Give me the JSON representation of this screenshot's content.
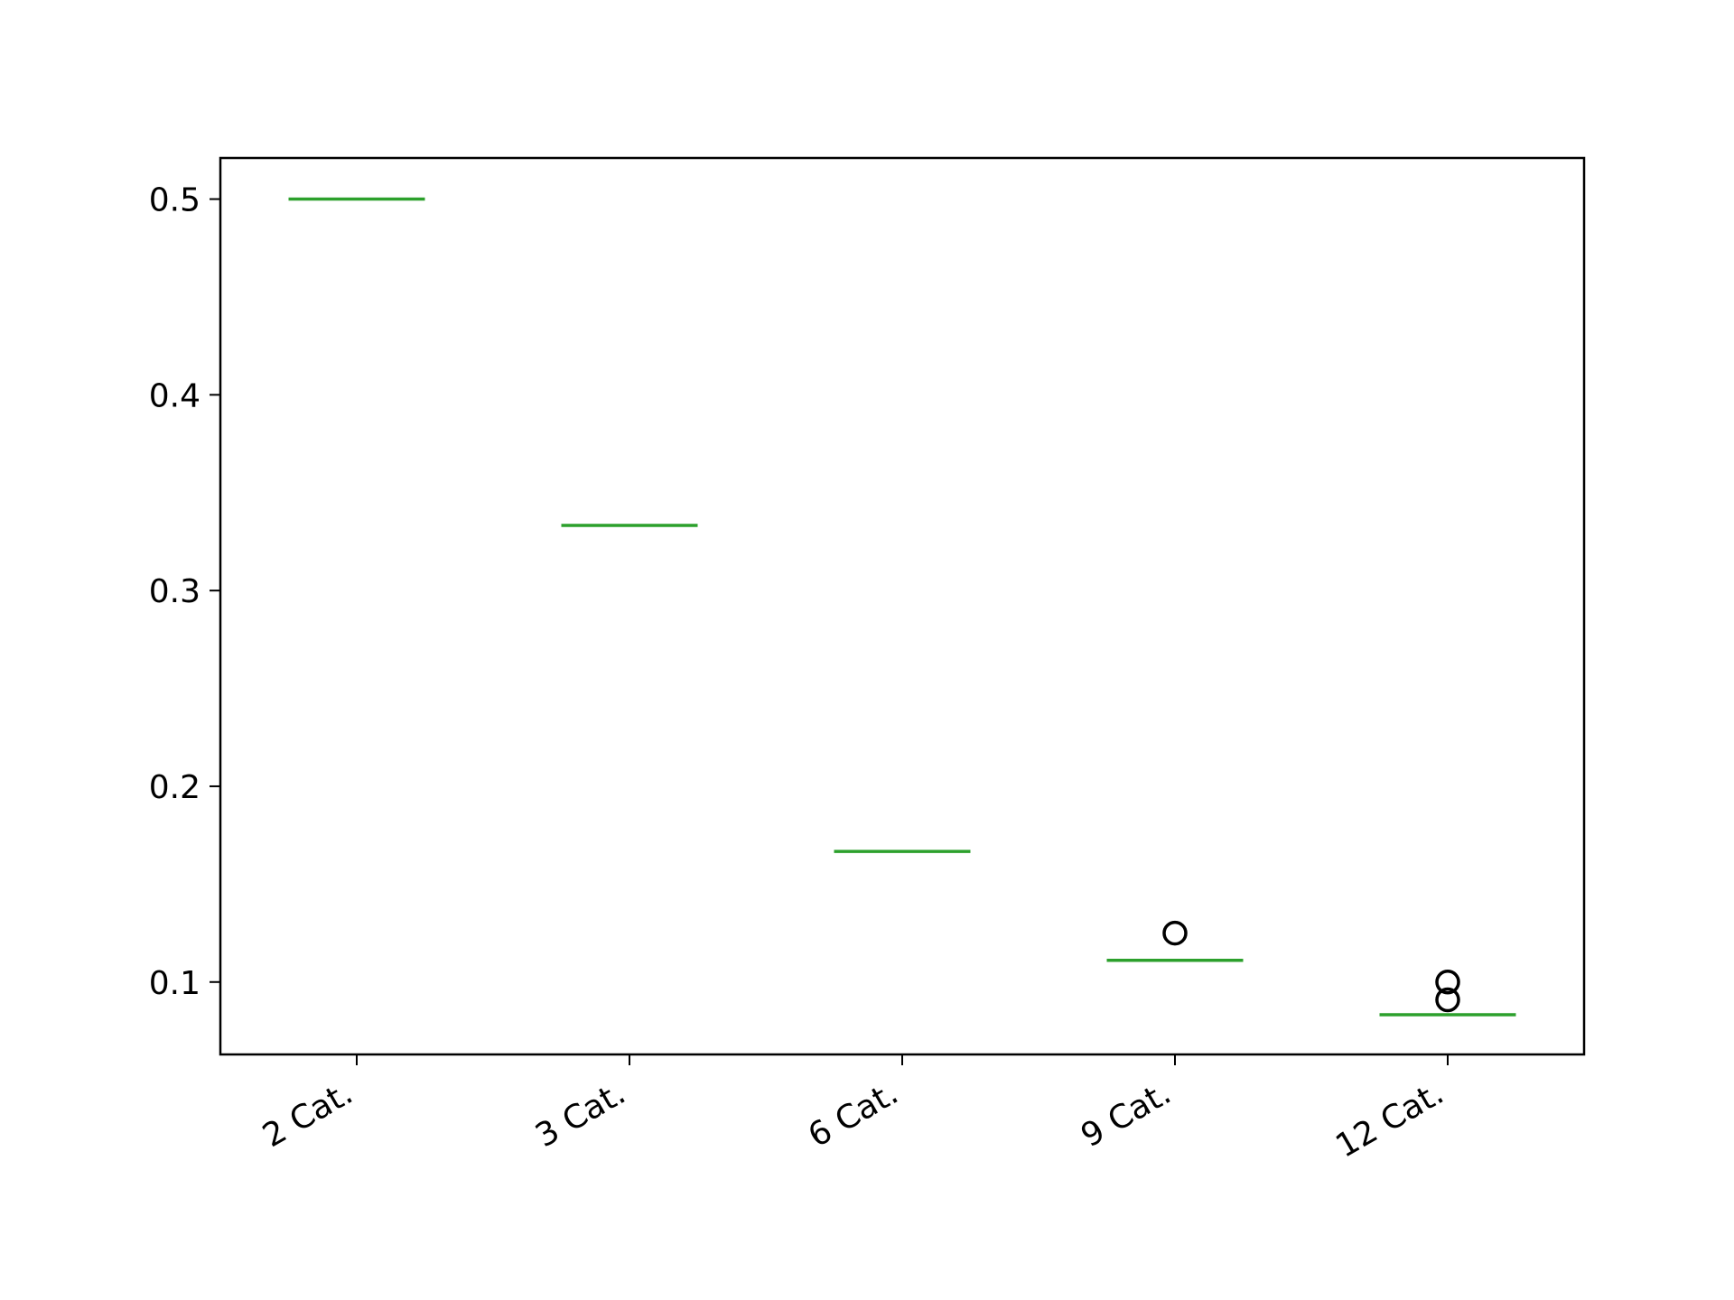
{
  "chart_data": {
    "type": "box",
    "title": "",
    "xlabel": "",
    "ylabel": "",
    "categories": [
      "2 Cat.",
      "3 Cat.",
      "6 Cat.",
      "9 Cat.",
      "12 Cat."
    ],
    "medians": [
      0.5,
      0.3333,
      0.1667,
      0.1111,
      0.0833
    ],
    "outliers": [
      [],
      [],
      [],
      [
        0.125
      ],
      [
        0.1,
        0.0909
      ]
    ],
    "ylim": [
      0.063,
      0.521
    ],
    "yticks": [
      0.1,
      0.2,
      0.3,
      0.4,
      0.5
    ],
    "ytick_labels": [
      "0.1",
      "0.2",
      "0.3",
      "0.4",
      "0.5"
    ],
    "grid": false,
    "colors": {
      "median": "#2ca02c",
      "outlier": "#000000",
      "axes": "#000000"
    }
  }
}
